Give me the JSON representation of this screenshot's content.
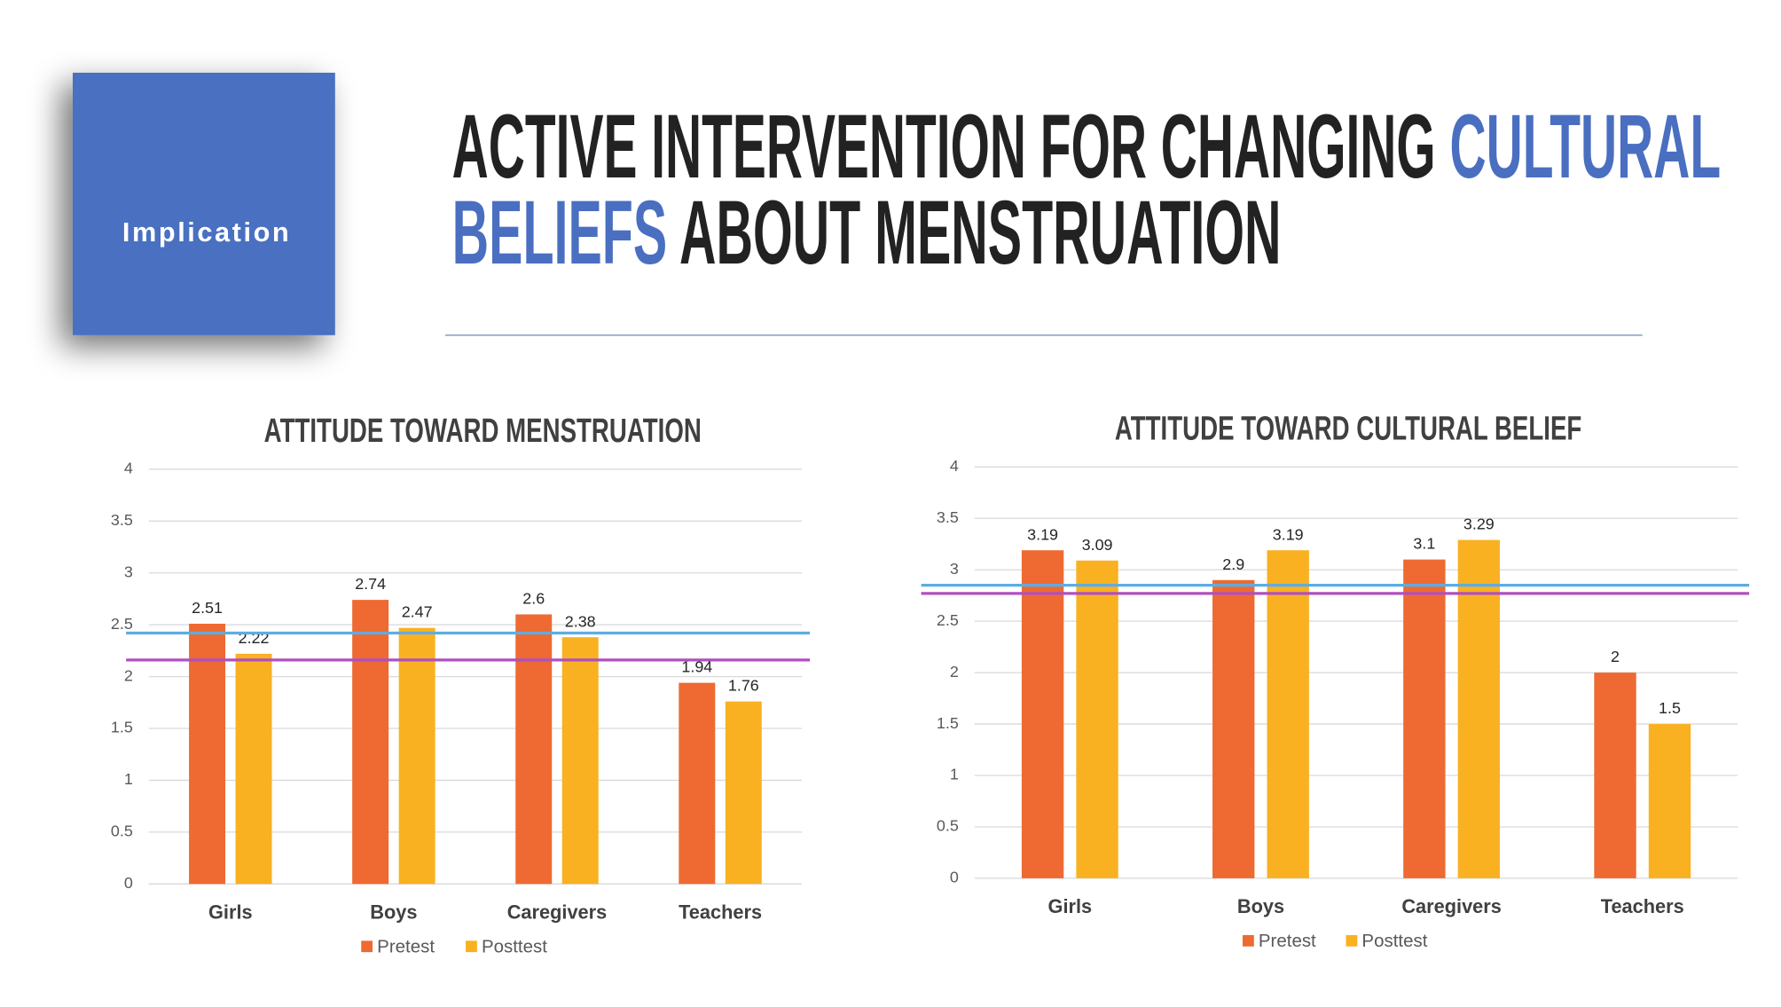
{
  "header": {
    "badge": "Implication",
    "title": [
      "ACTIVE INTERVENTION FOR CHANGING ",
      "CULTURAL",
      "BELIEFS",
      " ABOUT MENSTRUATION"
    ]
  },
  "chart_data": [
    {
      "type": "bar",
      "title": "ATTITUDE TOWARD MENSTRUATION",
      "categories": [
        "Girls",
        "Boys",
        "Caregivers",
        "Teachers"
      ],
      "series": [
        {
          "name": "Pretest",
          "color": "#ee6a32",
          "values": [
            2.51,
            2.74,
            2.6,
            1.94
          ]
        },
        {
          "name": "Posttest",
          "color": "#f9b122",
          "values": [
            2.22,
            2.47,
            2.38,
            1.76
          ]
        }
      ],
      "ylim": [
        0,
        4
      ],
      "yticks": [
        0,
        0.5,
        1,
        1.5,
        2,
        2.5,
        3,
        3.5,
        4
      ],
      "grid": true,
      "legend": "bottom",
      "reference_lines": [
        {
          "value": 2.42,
          "color": "#5dade2"
        },
        {
          "value": 2.16,
          "color": "#b04fbf"
        }
      ]
    },
    {
      "type": "bar",
      "title": "ATTITUDE TOWARD CULTURAL BELIEF",
      "categories": [
        "Girls",
        "Boys",
        "Caregivers",
        "Teachers"
      ],
      "series": [
        {
          "name": "Pretest",
          "color": "#ee6a32",
          "values": [
            3.19,
            2.9,
            3.1,
            2
          ]
        },
        {
          "name": "Posttest",
          "color": "#f9b122",
          "values": [
            3.09,
            3.19,
            3.29,
            1.5
          ]
        }
      ],
      "ylim": [
        0,
        4
      ],
      "yticks": [
        0,
        0.5,
        1,
        1.5,
        2,
        2.5,
        3,
        3.5,
        4
      ],
      "grid": true,
      "legend": "bottom",
      "reference_lines": [
        {
          "value": 2.85,
          "color": "#5dade2"
        },
        {
          "value": 2.77,
          "color": "#b04fbf"
        }
      ]
    }
  ]
}
